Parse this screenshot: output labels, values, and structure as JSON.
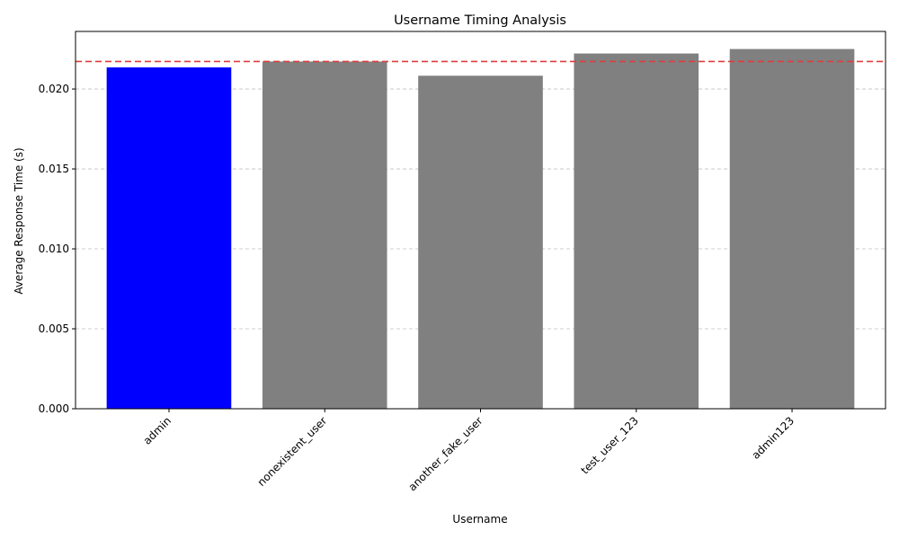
{
  "chart_data": {
    "type": "bar",
    "title": "Username Timing Analysis",
    "xlabel": "Username",
    "ylabel": "Average Response Time (s)",
    "categories": [
      "admin",
      "nonexistent_user",
      "another_fake_user",
      "test_user_123",
      "admin123"
    ],
    "values": [
      0.02135,
      0.02172,
      0.02083,
      0.02222,
      0.0225
    ],
    "bar_colors": [
      "#0000ff",
      "#808080",
      "#808080",
      "#808080",
      "#808080"
    ],
    "ylim": [
      0,
      0.0236
    ],
    "yticks": [
      0,
      0.005,
      0.01,
      0.015,
      0.02
    ],
    "ytick_labels": [
      "0.000",
      "0.005",
      "0.010",
      "0.015",
      "0.020"
    ],
    "reference_line": {
      "value": 0.02172,
      "color": "#e03c3c",
      "style": "dashed"
    },
    "grid": {
      "y": true,
      "style": "dashed",
      "color": "#c0c0c0"
    },
    "xtick_rotation": "45deg"
  }
}
